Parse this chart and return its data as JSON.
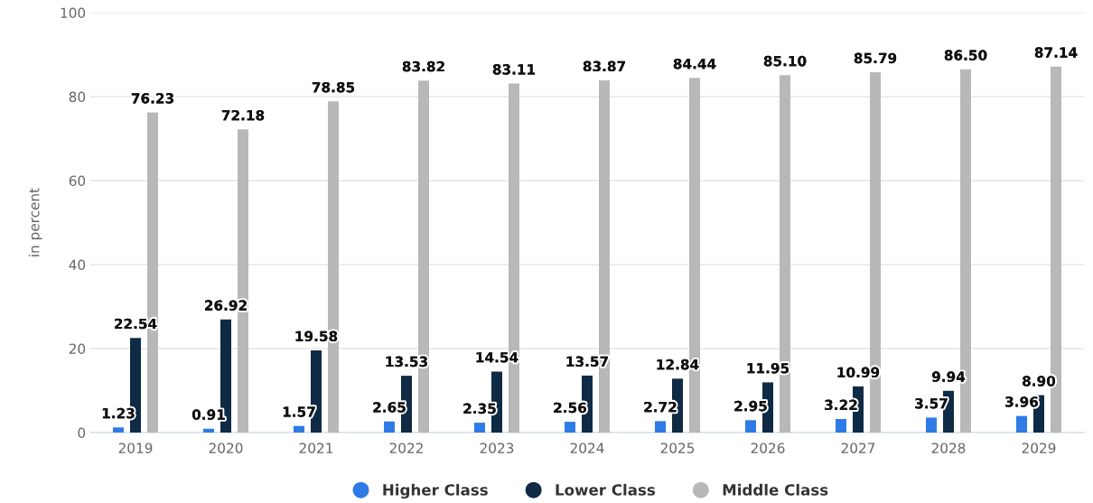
{
  "chart_data": {
    "type": "bar",
    "ylabel": "in percent",
    "categories": [
      "2019",
      "2020",
      "2021",
      "2022",
      "2023",
      "2024",
      "2025",
      "2026",
      "2027",
      "2028",
      "2029"
    ],
    "series": [
      {
        "name": "Higher Class",
        "color": "#2e7be6",
        "values": [
          1.23,
          0.91,
          1.57,
          2.65,
          2.35,
          2.56,
          2.72,
          2.95,
          3.22,
          3.57,
          3.96
        ],
        "value_labels": [
          "1.23",
          "0.91",
          "1.57",
          "2.65",
          "2.35",
          "2.56",
          "2.72",
          "2.95",
          "3.22",
          "3.57",
          "3.96"
        ]
      },
      {
        "name": "Lower Class",
        "color": "#0f2a45",
        "values": [
          22.54,
          26.92,
          19.58,
          13.53,
          14.54,
          13.57,
          12.84,
          11.95,
          10.99,
          9.94,
          8.9
        ],
        "value_labels": [
          "22.54",
          "26.92",
          "19.58",
          "13.53",
          "14.54",
          "13.57",
          "12.84",
          "11.95",
          "10.99",
          "9.94",
          "8.90"
        ]
      },
      {
        "name": "Middle Class",
        "color": "#b8b8b8",
        "values": [
          76.23,
          72.18,
          78.85,
          83.82,
          83.11,
          83.87,
          84.44,
          85.1,
          85.79,
          86.5,
          87.14
        ],
        "value_labels": [
          "76.23",
          "72.18",
          "78.85",
          "83.82",
          "83.11",
          "83.87",
          "84.44",
          "85.10",
          "85.79",
          "86.50",
          "87.14"
        ]
      }
    ],
    "ylim": [
      0,
      100
    ],
    "yticks": [
      0,
      20,
      40,
      60,
      80,
      100
    ],
    "grid": "y",
    "legend": "bottom"
  }
}
